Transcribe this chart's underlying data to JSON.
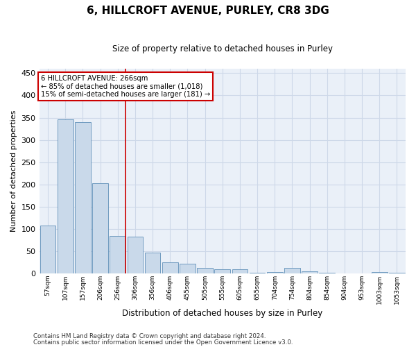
{
  "title": "6, HILLCROFT AVENUE, PURLEY, CR8 3DG",
  "subtitle": "Size of property relative to detached houses in Purley",
  "xlabel": "Distribution of detached houses by size in Purley",
  "ylabel": "Number of detached properties",
  "footnote1": "Contains HM Land Registry data © Crown copyright and database right 2024.",
  "footnote2": "Contains public sector information licensed under the Open Government Licence v3.0.",
  "annotation_line1": "6 HILLCROFT AVENUE: 266sqm",
  "annotation_line2": "← 85% of detached houses are smaller (1,018)",
  "annotation_line3": "15% of semi-detached houses are larger (181) →",
  "bar_color": "#c9d9ea",
  "bar_edge_color": "#6090b8",
  "marker_line_color": "#cc0000",
  "annotation_box_color": "#cc0000",
  "grid_color": "#cdd8e8",
  "background_color": "#eaf0f8",
  "bins": [
    "57sqm",
    "107sqm",
    "157sqm",
    "206sqm",
    "256sqm",
    "306sqm",
    "356sqm",
    "406sqm",
    "455sqm",
    "505sqm",
    "555sqm",
    "605sqm",
    "655sqm",
    "704sqm",
    "754sqm",
    "804sqm",
    "854sqm",
    "904sqm",
    "953sqm",
    "1003sqm",
    "1053sqm"
  ],
  "values": [
    108,
    346,
    340,
    202,
    85,
    82,
    47,
    25,
    22,
    13,
    10,
    10,
    2,
    3,
    13,
    5,
    1,
    0,
    0,
    3,
    2
  ],
  "marker_bin_index": 4,
  "ylim": [
    0,
    460
  ],
  "yticks": [
    0,
    50,
    100,
    150,
    200,
    250,
    300,
    350,
    400,
    450
  ]
}
